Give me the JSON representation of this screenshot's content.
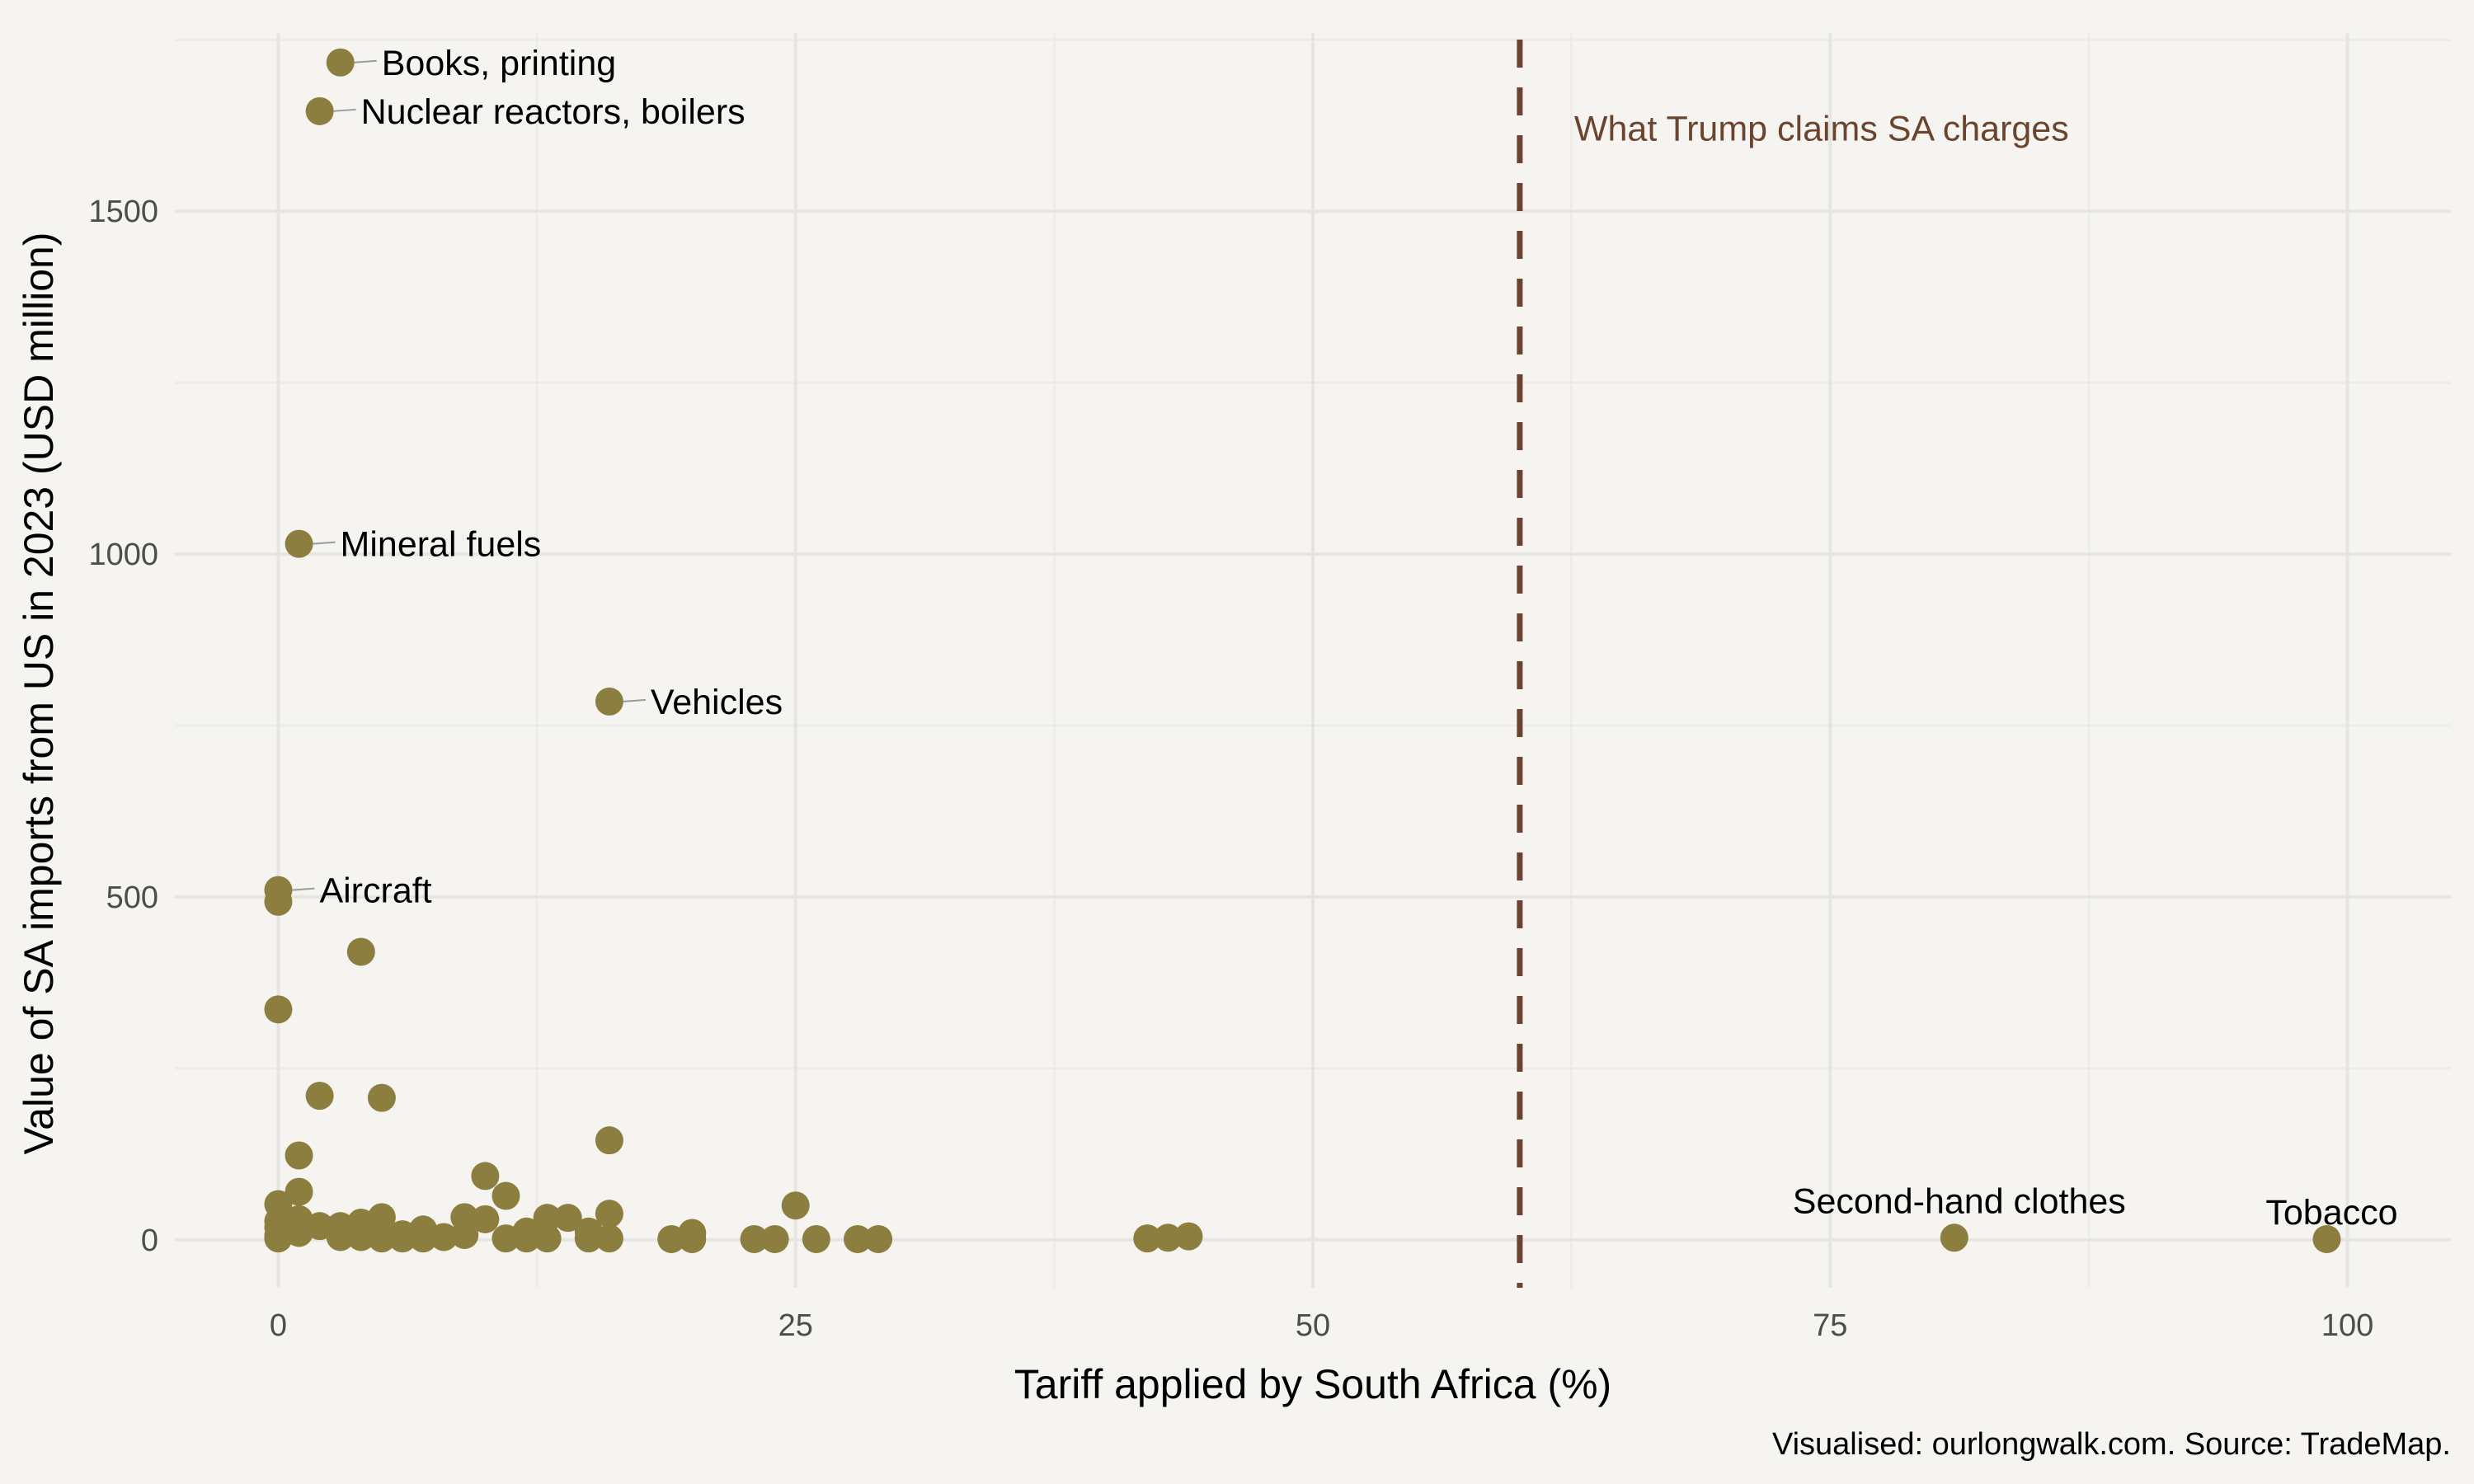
{
  "chart_data": {
    "type": "scatter",
    "xlabel": "Tariff applied by South Africa (%)",
    "ylabel": "Value of SA imports from US in 2023 (USD million)",
    "caption": "Visualised: ourlongwalk.com. Source: TradeMap.",
    "xlim": [
      -5,
      105
    ],
    "ylim": [
      -70,
      1760
    ],
    "x_ticks": [
      0,
      25,
      50,
      75,
      100
    ],
    "y_ticks": [
      0,
      500,
      1000,
      1500
    ],
    "grid": true,
    "point_color": "#8b7e3e",
    "reference_line": {
      "x": 60,
      "label": "What Trump claims SA charges",
      "color": "#6b4430",
      "style": "dashed"
    },
    "labeled_points": [
      {
        "x": 3,
        "y": 1717,
        "label": "Books, printing"
      },
      {
        "x": 2,
        "y": 1646,
        "label": "Nuclear reactors, boilers"
      },
      {
        "x": 1,
        "y": 1015,
        "label": "Mineral fuels"
      },
      {
        "x": 16,
        "y": 785,
        "label": "Vehicles"
      },
      {
        "x": 0,
        "y": 510,
        "label": "Aircraft"
      },
      {
        "x": 81,
        "y": 3,
        "label": "Second-hand clothes"
      },
      {
        "x": 99,
        "y": 1,
        "label": "Tobacco"
      }
    ],
    "points": [
      {
        "x": 0,
        "y": 493
      },
      {
        "x": 4,
        "y": 420
      },
      {
        "x": 0,
        "y": 336
      },
      {
        "x": 2,
        "y": 210
      },
      {
        "x": 5,
        "y": 207
      },
      {
        "x": 16,
        "y": 145
      },
      {
        "x": 1,
        "y": 123
      },
      {
        "x": 10,
        "y": 93
      },
      {
        "x": 1,
        "y": 70
      },
      {
        "x": 11,
        "y": 64
      },
      {
        "x": 0,
        "y": 52
      },
      {
        "x": 25,
        "y": 50
      },
      {
        "x": 16,
        "y": 38
      },
      {
        "x": 5,
        "y": 33
      },
      {
        "x": 9,
        "y": 33
      },
      {
        "x": 13,
        "y": 32
      },
      {
        "x": 14,
        "y": 32
      },
      {
        "x": 1,
        "y": 30
      },
      {
        "x": 10,
        "y": 30
      },
      {
        "x": 0,
        "y": 27
      },
      {
        "x": 4,
        "y": 25
      },
      {
        "x": 3,
        "y": 20
      },
      {
        "x": 2,
        "y": 20
      },
      {
        "x": 0,
        "y": 18
      },
      {
        "x": 5,
        "y": 15
      },
      {
        "x": 7,
        "y": 15
      },
      {
        "x": 12,
        "y": 12
      },
      {
        "x": 15,
        "y": 12
      },
      {
        "x": 20,
        "y": 10
      },
      {
        "x": 1,
        "y": 10
      },
      {
        "x": 6,
        "y": 8
      },
      {
        "x": 9,
        "y": 7
      },
      {
        "x": 0,
        "y": 6
      },
      {
        "x": 44,
        "y": 5
      },
      {
        "x": 3,
        "y": 4
      },
      {
        "x": 4,
        "y": 4
      },
      {
        "x": 8,
        "y": 4
      },
      {
        "x": 43,
        "y": 3
      },
      {
        "x": 42,
        "y": 2
      },
      {
        "x": 0,
        "y": 2
      },
      {
        "x": 5,
        "y": 2
      },
      {
        "x": 6,
        "y": 2
      },
      {
        "x": 7,
        "y": 2
      },
      {
        "x": 11,
        "y": 2
      },
      {
        "x": 12,
        "y": 2
      },
      {
        "x": 13,
        "y": 2
      },
      {
        "x": 15,
        "y": 2
      },
      {
        "x": 16,
        "y": 2
      },
      {
        "x": 19,
        "y": 1
      },
      {
        "x": 20,
        "y": 1
      },
      {
        "x": 23,
        "y": 1
      },
      {
        "x": 24,
        "y": 1
      },
      {
        "x": 26,
        "y": 1
      },
      {
        "x": 28,
        "y": 1
      },
      {
        "x": 29,
        "y": 1
      }
    ]
  }
}
